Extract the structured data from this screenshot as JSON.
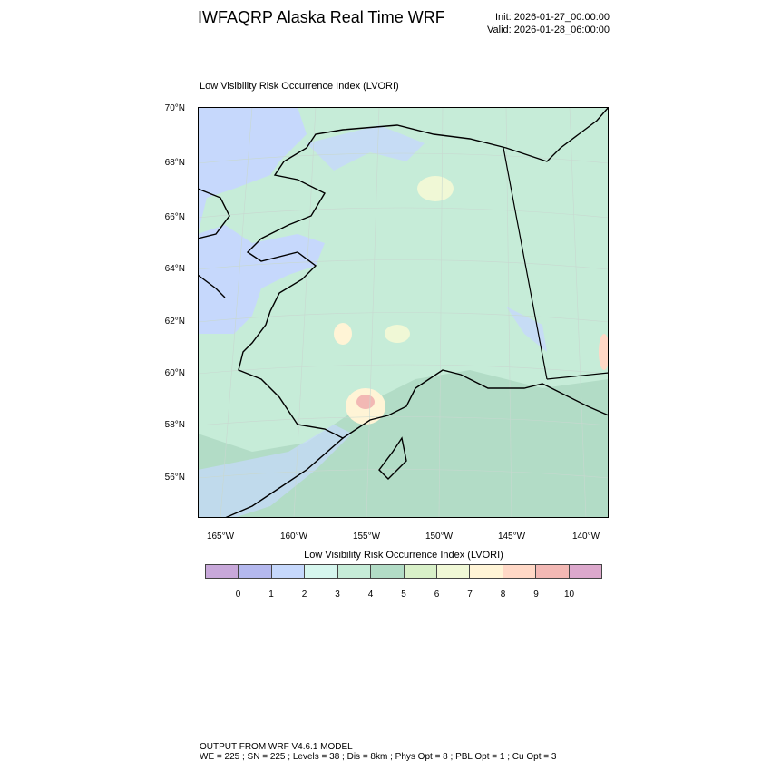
{
  "header": {
    "title": "IWFAQRP Alaska Real Time WRF",
    "init": "Init: 2026-01-27_00:00:00",
    "valid": "Valid: 2026-01-28_06:00:00"
  },
  "map": {
    "subtitle": "Low Visibility Risk Occurrence Index   (LVORI)",
    "lat_labels": [
      "70°N",
      "68°N",
      "66°N",
      "64°N",
      "62°N",
      "60°N",
      "58°N",
      "56°N"
    ],
    "lon_labels": [
      "165°W",
      "160°W",
      "155°W",
      "150°W",
      "145°W",
      "140°W"
    ]
  },
  "colorbar": {
    "title": "Low Visibility Risk Occurrence Index  (LVORI)",
    "labels": [
      "0",
      "1",
      "2",
      "3",
      "4",
      "5",
      "6",
      "7",
      "8",
      "9",
      "10"
    ],
    "colors": [
      "#c8a8da",
      "#b4b8ee",
      "#c6d8fc",
      "#d6f6ee",
      "#c6ecd8",
      "#b2dcc6",
      "#d8f0c8",
      "#f0f8d6",
      "#fff4d6",
      "#ffd8c6",
      "#f2b8b4",
      "#dca8cc"
    ]
  },
  "footer": {
    "line1": "OUTPUT FROM WRF V4.6.1 MODEL",
    "line2": "WE = 225 ; SN = 225 ; Levels = 38 ; Dis = 8km ; Phys Opt = 8 ; PBL Opt = 1 ; Cu Opt = 3"
  }
}
